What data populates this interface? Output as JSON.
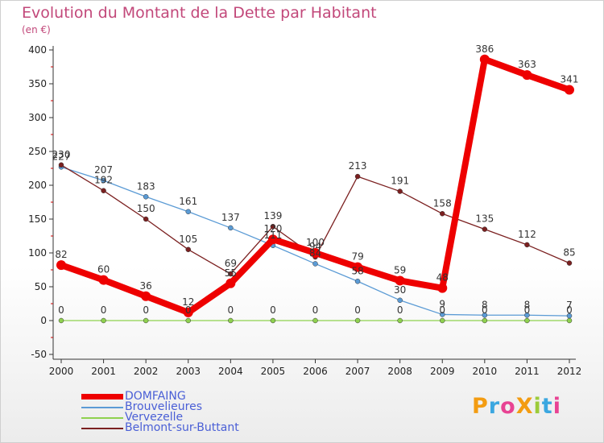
{
  "chart_data": {
    "type": "line",
    "title": "Evolution du Montant de la Dette par Habitant",
    "unit": "(en €)",
    "x": [
      "2000",
      "2001",
      "2002",
      "2003",
      "2004",
      "2005",
      "2006",
      "2007",
      "2008",
      "2009",
      "2010",
      "2011",
      "2012"
    ],
    "ylim": [
      -50,
      400
    ],
    "yticks": [
      -50,
      0,
      50,
      100,
      150,
      200,
      250,
      300,
      350,
      400
    ],
    "grid": false,
    "legend_position": "bottom-left",
    "series": [
      {
        "name": "DOMFAING",
        "color": "#ee0000",
        "values": [
          82,
          60,
          36,
          12,
          55,
          120,
          100,
          79,
          59,
          48,
          386,
          363,
          341
        ],
        "labels": [
          "82",
          "60",
          "36",
          "12",
          "55",
          "120",
          "100",
          "79",
          "59",
          "48",
          "386",
          "363",
          "341"
        ]
      },
      {
        "name": "Brouvelieures",
        "color": "#5b9bd5",
        "values": [
          227,
          207,
          183,
          161,
          137,
          111,
          84,
          58,
          30,
          9,
          8,
          8,
          7
        ],
        "labels": [
          "227",
          "207",
          "183",
          "161",
          "137",
          "111",
          "84",
          "58",
          "30",
          "9",
          "8",
          "8",
          "7"
        ]
      },
      {
        "name": "Vervezelle",
        "color": "#8fd14f",
        "values": [
          0,
          0,
          0,
          0,
          0,
          0,
          0,
          0,
          0,
          0,
          0,
          0,
          0
        ],
        "labels": [
          "0",
          "0",
          "0",
          "0",
          "0",
          "0",
          "0",
          "0",
          "0",
          "0",
          "0",
          "0",
          "0"
        ]
      },
      {
        "name": "Belmont-sur-Buttant",
        "color": "#7b2020",
        "values": [
          230,
          192,
          150,
          105,
          69,
          139,
          94,
          213,
          191,
          158,
          135,
          112,
          85
        ],
        "labels": [
          "230",
          "192",
          "150",
          "105",
          "69",
          "139",
          "94",
          "213",
          "191",
          "158",
          "135",
          "112",
          "85"
        ]
      }
    ]
  },
  "logo": {
    "text": "ProXiti",
    "colors": [
      "#f39c12",
      "#3ba7e0",
      "#e84393",
      "#f39c12",
      "#9ccc3a",
      "#3ba7e0",
      "#e84393"
    ]
  }
}
